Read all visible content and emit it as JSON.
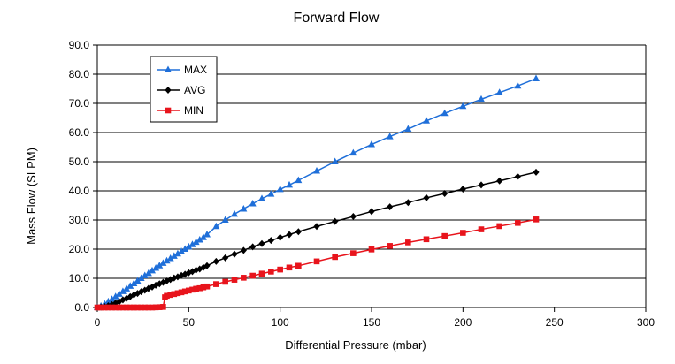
{
  "chart_data": {
    "type": "line",
    "title": "Forward Flow",
    "xlabel": "Differential Pressure (mbar)",
    "ylabel": "Mass Flow (SLPM)",
    "xlim": [
      0,
      300
    ],
    "ylim": [
      0,
      90
    ],
    "x_ticks": [
      0,
      50,
      100,
      150,
      200,
      250,
      300
    ],
    "y_ticks": [
      0,
      10,
      20,
      30,
      40,
      50,
      60,
      70,
      80,
      90
    ],
    "x_tick_labels": [
      "0",
      "50",
      "100",
      "150",
      "200",
      "250",
      "300"
    ],
    "y_tick_labels": [
      "0.0",
      "10.0",
      "20.0",
      "30.0",
      "40.0",
      "50.0",
      "60.0",
      "70.0",
      "80.0",
      "90.0"
    ],
    "grid": "horizontal",
    "legend_position": "top-left",
    "series": [
      {
        "name": "MAX",
        "color": "#1f6fd9",
        "marker": "triangle",
        "x": [
          0,
          2,
          4,
          6,
          8,
          10,
          12,
          14,
          16,
          18,
          20,
          22,
          24,
          26,
          28,
          30,
          32,
          34,
          36,
          38,
          40,
          42,
          44,
          46,
          48,
          50,
          52,
          54,
          56,
          58,
          60,
          65,
          70,
          75,
          80,
          85,
          90,
          95,
          100,
          105,
          110,
          120,
          130,
          140,
          150,
          160,
          170,
          180,
          190,
          200,
          210,
          220,
          230,
          240
        ],
        "y": [
          0,
          0.5,
          1.2,
          2.0,
          2.8,
          3.7,
          4.6,
          5.5,
          6.4,
          7.3,
          8.2,
          9.1,
          10.0,
          10.9,
          11.7,
          12.6,
          13.5,
          14.3,
          15.2,
          16.0,
          16.8,
          17.6,
          18.4,
          19.2,
          20.0,
          20.8,
          21.6,
          22.4,
          23.2,
          24.0,
          25.0,
          27.8,
          30.0,
          32.0,
          33.8,
          35.6,
          37.3,
          38.9,
          40.5,
          42.0,
          43.6,
          46.8,
          50.0,
          53.0,
          55.9,
          58.6,
          61.2,
          64.0,
          66.6,
          69.0,
          71.4,
          73.7,
          76.0,
          78.5
        ]
      },
      {
        "name": "AVG",
        "color": "#000000",
        "marker": "diamond",
        "x": [
          0,
          2,
          4,
          6,
          8,
          10,
          12,
          14,
          16,
          18,
          20,
          22,
          24,
          26,
          28,
          30,
          32,
          34,
          36,
          38,
          40,
          42,
          44,
          46,
          48,
          50,
          52,
          54,
          56,
          58,
          60,
          65,
          70,
          75,
          80,
          85,
          90,
          95,
          100,
          105,
          110,
          120,
          130,
          140,
          150,
          160,
          170,
          180,
          190,
          200,
          210,
          220,
          230,
          240
        ],
        "y": [
          0,
          0.1,
          0.3,
          0.6,
          1.0,
          1.5,
          2.0,
          2.6,
          3.1,
          3.7,
          4.3,
          4.8,
          5.4,
          5.9,
          6.5,
          7.0,
          7.6,
          8.1,
          8.6,
          9.1,
          9.6,
          10.1,
          10.5,
          11.0,
          11.4,
          11.9,
          12.3,
          12.8,
          13.2,
          13.7,
          14.3,
          15.8,
          17.0,
          18.3,
          19.6,
          20.8,
          21.9,
          23.0,
          24.0,
          25.0,
          26.0,
          27.8,
          29.5,
          31.2,
          32.9,
          34.5,
          36.0,
          37.6,
          39.1,
          40.6,
          42.0,
          43.4,
          44.9,
          46.4
        ]
      },
      {
        "name": "MIN",
        "color": "#e8141c",
        "marker": "square",
        "x": [
          0,
          2,
          4,
          6,
          8,
          10,
          12,
          14,
          16,
          18,
          20,
          22,
          24,
          26,
          28,
          30,
          32,
          34,
          36,
          37,
          38,
          40,
          42,
          44,
          46,
          48,
          50,
          52,
          54,
          56,
          58,
          60,
          65,
          70,
          75,
          80,
          85,
          90,
          95,
          100,
          105,
          110,
          120,
          130,
          140,
          150,
          160,
          170,
          180,
          190,
          200,
          210,
          220,
          230,
          240
        ],
        "y": [
          0,
          0,
          0,
          0,
          0,
          0,
          0,
          0,
          0,
          0,
          0,
          0,
          0,
          0,
          0,
          0,
          0.05,
          0.1,
          0.2,
          3.5,
          4.0,
          4.3,
          4.6,
          4.9,
          5.2,
          5.5,
          5.8,
          6.1,
          6.4,
          6.6,
          6.9,
          7.2,
          8.0,
          8.8,
          9.5,
          10.2,
          10.9,
          11.6,
          12.3,
          13.0,
          13.7,
          14.3,
          15.8,
          17.3,
          18.6,
          19.9,
          21.1,
          22.3,
          23.4,
          24.5,
          25.6,
          26.8,
          27.9,
          29.0,
          30.2
        ]
      }
    ]
  }
}
